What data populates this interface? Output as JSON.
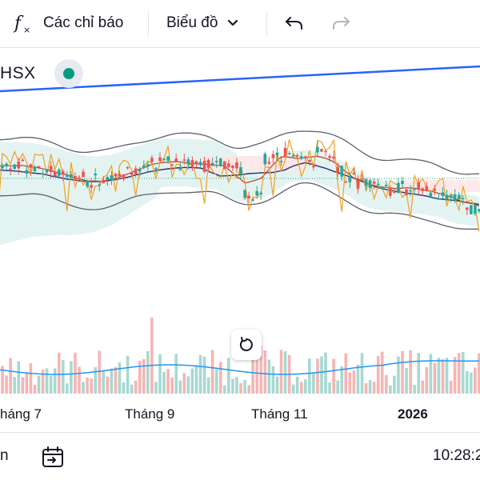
{
  "toolbar": {
    "indicators_label": "Các chỉ báo",
    "chart_type_label": "Biểu đồ",
    "icons": [
      "function-icon",
      "chevron-down-icon",
      "undo-icon",
      "redo-icon"
    ]
  },
  "symbol": {
    "exchange": "HSX",
    "status_color": "#089981"
  },
  "time_axis": {
    "labels": [
      {
        "text": "háng 7",
        "bold": false
      },
      {
        "text": "Tháng 9",
        "bold": false
      },
      {
        "text": "Tháng 11",
        "bold": false
      },
      {
        "text": "2026",
        "bold": true
      }
    ]
  },
  "bottom": {
    "left_text": "n",
    "clock": "10:28:2"
  },
  "colors": {
    "up": "#26a69a",
    "down": "#ef5350",
    "trendline": "#2962ff",
    "bollinger": "#5d606b",
    "ichimoku_cloud_up": "#e0f2ef",
    "ichimoku_cloud_down": "#fde4e4",
    "ma_orange": "#f0a020",
    "ma_navy": "#2a2e7a",
    "ma_red": "#c0392b"
  }
}
